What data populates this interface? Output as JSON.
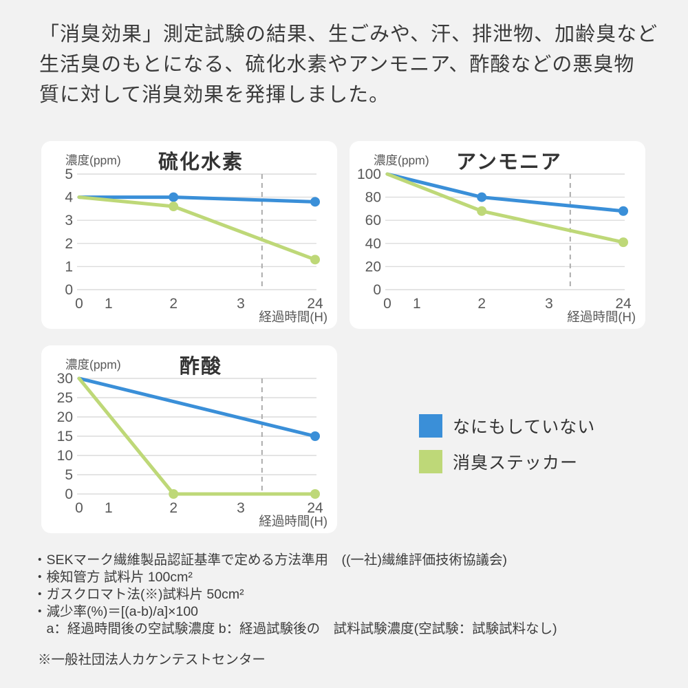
{
  "header": {
    "lines": [
      "「消臭効果」測定試験の結果、生ごみや、汗、排泄物、加齢臭など",
      "生活臭のもとになる、硫化水素やアンモニア、酢酸などの悪臭物",
      "質に対して消臭効果を発揮しました。"
    ]
  },
  "colors": {
    "blue": "#3A8FD8",
    "green": "#BED878",
    "grid": "#DCDCDC",
    "dashed": "#ABABAB",
    "axis_text": "#595959",
    "title_text": "#333333",
    "card_bg": "#FFFFFF",
    "page_bg": "#F2F2F2"
  },
  "legend": {
    "items": [
      {
        "label": "なにもしていない",
        "color_key": "blue"
      },
      {
        "label": "消臭ステッカー",
        "color_key": "green"
      }
    ]
  },
  "chart_data": [
    {
      "type": "line",
      "id": "hydrogen-sulfide",
      "title": "硫化水素",
      "y_axis_label": "濃度(ppm)",
      "x_axis_label": "経過時間(H)",
      "x_ticks": [
        "0",
        "1",
        "2",
        "3",
        "24"
      ],
      "x_positions": [
        0,
        0.125,
        0.4,
        0.685,
        1
      ],
      "y_ticks": [
        0,
        1,
        2,
        3,
        4,
        5
      ],
      "ylim": [
        0,
        5
      ],
      "grid": true,
      "dashed_line_x": 0.775,
      "series": [
        {
          "name": "なにもしていない",
          "color": "blue",
          "points": [
            {
              "x": "0",
              "v": 4,
              "marker": false
            },
            {
              "x": "2",
              "v": 4,
              "marker": true
            },
            {
              "x": "24",
              "v": 3.8,
              "marker": true
            }
          ]
        },
        {
          "name": "消臭ステッカー",
          "color": "green",
          "points": [
            {
              "x": "0",
              "v": 4,
              "marker": false
            },
            {
              "x": "2",
              "v": 3.6,
              "marker": true
            },
            {
              "x": "24",
              "v": 1.3,
              "marker": true
            }
          ]
        }
      ]
    },
    {
      "type": "line",
      "id": "ammonia",
      "title": "アンモニア",
      "y_axis_label": "濃度(ppm)",
      "x_axis_label": "経過時間(H)",
      "x_ticks": [
        "0",
        "1",
        "2",
        "3",
        "24"
      ],
      "x_positions": [
        0,
        0.125,
        0.4,
        0.685,
        1
      ],
      "y_ticks": [
        0,
        20,
        40,
        60,
        80,
        100
      ],
      "ylim": [
        0,
        100
      ],
      "grid": true,
      "dashed_line_x": 0.775,
      "series": [
        {
          "name": "なにもしていない",
          "color": "blue",
          "points": [
            {
              "x": "0",
              "v": 100,
              "marker": false
            },
            {
              "x": "2",
              "v": 80,
              "marker": true
            },
            {
              "x": "24",
              "v": 68,
              "marker": true
            }
          ]
        },
        {
          "name": "消臭ステッカー",
          "color": "green",
          "points": [
            {
              "x": "0",
              "v": 100,
              "marker": false
            },
            {
              "x": "2",
              "v": 68,
              "marker": true
            },
            {
              "x": "24",
              "v": 41,
              "marker": true
            }
          ]
        }
      ]
    },
    {
      "type": "line",
      "id": "acetic-acid",
      "title": "酢酸",
      "y_axis_label": "濃度(ppm)",
      "x_axis_label": "経過時間(H)",
      "x_ticks": [
        "0",
        "1",
        "2",
        "3",
        "24"
      ],
      "x_positions": [
        0,
        0.125,
        0.4,
        0.685,
        1
      ],
      "y_ticks": [
        0,
        5,
        10,
        15,
        20,
        25,
        30
      ],
      "ylim": [
        0,
        30
      ],
      "grid": true,
      "dashed_line_x": 0.775,
      "series": [
        {
          "name": "なにもしていない",
          "color": "blue",
          "points": [
            {
              "x": "0",
              "v": 30,
              "marker": false
            },
            {
              "x": "24",
              "v": 15,
              "marker": true
            }
          ]
        },
        {
          "name": "消臭ステッカー",
          "color": "green",
          "points": [
            {
              "x": "0",
              "v": 30,
              "marker": false
            },
            {
              "x": "2",
              "v": 0,
              "marker": true
            },
            {
              "x": "24",
              "v": 0,
              "marker": true
            }
          ]
        }
      ]
    }
  ],
  "footnotes": {
    "lines": [
      "・SEKマーク繊維製品認証基準で定める方法準用　((一社)繊維評価技術協議会)",
      "・検知管方 試料片 100cm²",
      "・ガスクロマト法(※)試料片 50cm²",
      "・減少率(%)＝[(a-b)/a]×100",
      "　a：経過時間後の空試験濃度  b：経過試験後の　試料試験濃度(空試験：試験試料なし)"
    ],
    "source": "※一般社団法人カケンテストセンター"
  }
}
